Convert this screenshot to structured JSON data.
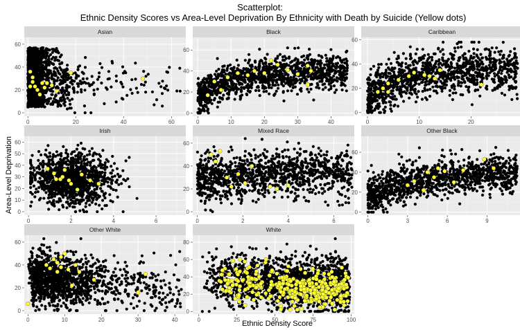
{
  "chart_data": {
    "type": "scatter",
    "title_line1": "Scatterplot:",
    "title_line2": "Ethnic Density Scores vs Area-Level Deprivation By Ethnicity with Death by Suicide (Yellow dots)",
    "xlabel": "Ethnic Density Score",
    "ylabel": "Area-Level Deprivation",
    "colors": {
      "panel_bg": "#ebebeb",
      "strip_bg": "#d9d9d9",
      "grid_major": "#ffffff",
      "grid_minor": "#f5f5f5",
      "dot": "#000000",
      "suicide_dot": "#ffff33"
    },
    "facets": [
      {
        "name": "Asian",
        "xlim": [
          -1.5,
          66
        ],
        "ylim": [
          -3,
          66
        ],
        "xticks": [
          0,
          20,
          40,
          60
        ],
        "yticks": [
          0,
          20,
          40,
          60
        ],
        "seed": 11,
        "n": 1250,
        "mode": "asian",
        "yellow": [
          [
            1,
            36
          ],
          [
            2,
            31
          ],
          [
            2,
            27
          ],
          [
            3,
            23
          ],
          [
            4,
            20
          ],
          [
            5,
            16
          ],
          [
            6,
            26
          ],
          [
            8,
            26
          ],
          [
            10,
            24
          ],
          [
            12,
            19
          ],
          [
            18,
            35
          ],
          [
            48,
            30
          ],
          [
            1,
            23
          ],
          [
            7,
            22
          ]
        ]
      },
      {
        "name": "Black",
        "xlim": [
          -1.5,
          47
        ],
        "ylim": [
          -3,
          72
        ],
        "xticks": [
          0,
          10,
          20,
          30,
          40
        ],
        "yticks": [
          0,
          20,
          40,
          60
        ],
        "seed": 22,
        "n": 1200,
        "mode": "black",
        "yellow": [
          [
            5,
            30
          ],
          [
            7,
            22
          ],
          [
            9,
            34
          ],
          [
            12,
            38
          ],
          [
            15,
            36
          ],
          [
            17,
            40
          ],
          [
            20,
            38
          ],
          [
            22,
            50
          ],
          [
            24,
            46
          ],
          [
            27,
            41
          ],
          [
            30,
            37
          ],
          [
            33,
            45
          ],
          [
            34,
            40
          ],
          [
            33,
            27
          ],
          [
            3,
            17
          ]
        ]
      },
      {
        "name": "Caribbean",
        "xlim": [
          -1.2,
          30
        ],
        "ylim": [
          -3,
          62
        ],
        "xticks": [
          0,
          10,
          20
        ],
        "yticks": [
          0,
          20,
          40,
          60
        ],
        "seed": 33,
        "n": 1150,
        "mode": "carib",
        "yellow": [
          [
            2,
            17
          ],
          [
            3,
            20
          ],
          [
            4,
            24
          ],
          [
            6,
            27
          ],
          [
            8,
            30
          ],
          [
            9,
            33
          ],
          [
            11,
            31
          ],
          [
            12,
            30
          ],
          [
            13,
            28
          ],
          [
            14,
            35
          ],
          [
            22,
            23
          ],
          [
            4,
            17
          ]
        ]
      },
      {
        "name": "Irish",
        "xlim": [
          -0.2,
          7.4
        ],
        "ylim": [
          -3,
          65
        ],
        "xticks": [
          0,
          2,
          4,
          6
        ],
        "yticks": [
          0,
          10,
          20,
          30,
          40,
          50,
          60
        ],
        "seed": 44,
        "n": 1150,
        "mode": "irish",
        "yellow": [
          [
            0.9,
            37
          ],
          [
            1.2,
            33
          ],
          [
            1.5,
            28
          ],
          [
            1.6,
            30
          ],
          [
            1.7,
            36
          ],
          [
            1.9,
            27
          ],
          [
            2.0,
            24
          ],
          [
            2.3,
            19
          ],
          [
            2.5,
            32
          ],
          [
            2.9,
            27
          ],
          [
            3.3,
            24
          ],
          [
            1.3,
            28
          ]
        ]
      },
      {
        "name": "Mixed Race",
        "xlim": [
          -0.2,
          6.9
        ],
        "ylim": [
          -3,
          66
        ],
        "xticks": [
          0,
          2,
          4,
          6
        ],
        "yticks": [
          0,
          20,
          40,
          60
        ],
        "seed": 55,
        "n": 1150,
        "mode": "mixed",
        "yellow": [
          [
            0.6,
            50
          ],
          [
            0.8,
            44
          ],
          [
            1.0,
            53
          ],
          [
            1.3,
            30
          ],
          [
            1.5,
            22
          ],
          [
            1.8,
            33
          ],
          [
            2.1,
            25
          ],
          [
            2.4,
            40
          ],
          [
            3.2,
            22
          ],
          [
            3.5,
            20
          ],
          [
            4.0,
            23
          ]
        ]
      },
      {
        "name": "Other Black",
        "xlim": [
          -0.5,
          11.7
        ],
        "ylim": [
          -3,
          76
        ],
        "xticks": [
          0,
          3,
          6,
          9
        ],
        "yticks": [
          0,
          20,
          40,
          60
        ],
        "seed": 66,
        "n": 1200,
        "mode": "oblack",
        "yellow": [
          [
            3,
            27
          ],
          [
            3.5,
            31
          ],
          [
            4.2,
            22
          ],
          [
            4.5,
            40
          ],
          [
            5,
            35
          ],
          [
            5.3,
            44
          ],
          [
            5.8,
            41
          ],
          [
            6.5,
            30
          ],
          [
            7.2,
            42
          ],
          [
            8.8,
            53
          ],
          [
            9.5,
            44
          ]
        ]
      },
      {
        "name": "Other White",
        "xlim": [
          -1,
          43
        ],
        "ylim": [
          -3,
          66
        ],
        "xticks": [
          0,
          10,
          20,
          30,
          40
        ],
        "yticks": [
          0,
          20,
          40,
          60
        ],
        "seed": 77,
        "n": 1350,
        "mode": "owhite",
        "yellow": [
          [
            0,
            6
          ],
          [
            5,
            40
          ],
          [
            6,
            37
          ],
          [
            7,
            45
          ],
          [
            8,
            42
          ],
          [
            9,
            47
          ],
          [
            10,
            50
          ],
          [
            11,
            36
          ],
          [
            12,
            22
          ],
          [
            13,
            40
          ],
          [
            14,
            34
          ],
          [
            18,
            27
          ],
          [
            32,
            32
          ],
          [
            30,
            16
          ],
          [
            9,
            38
          ],
          [
            8,
            34
          ]
        ]
      },
      {
        "name": "White",
        "xlim": [
          -4,
          102
        ],
        "ylim": [
          -3,
          88
        ],
        "xticks": [
          0,
          25,
          50,
          75,
          100
        ],
        "yticks": [
          0,
          20,
          40,
          60,
          80
        ],
        "seed": 88,
        "n": 1700,
        "mode": "white",
        "yellow_n": 330
      }
    ]
  }
}
